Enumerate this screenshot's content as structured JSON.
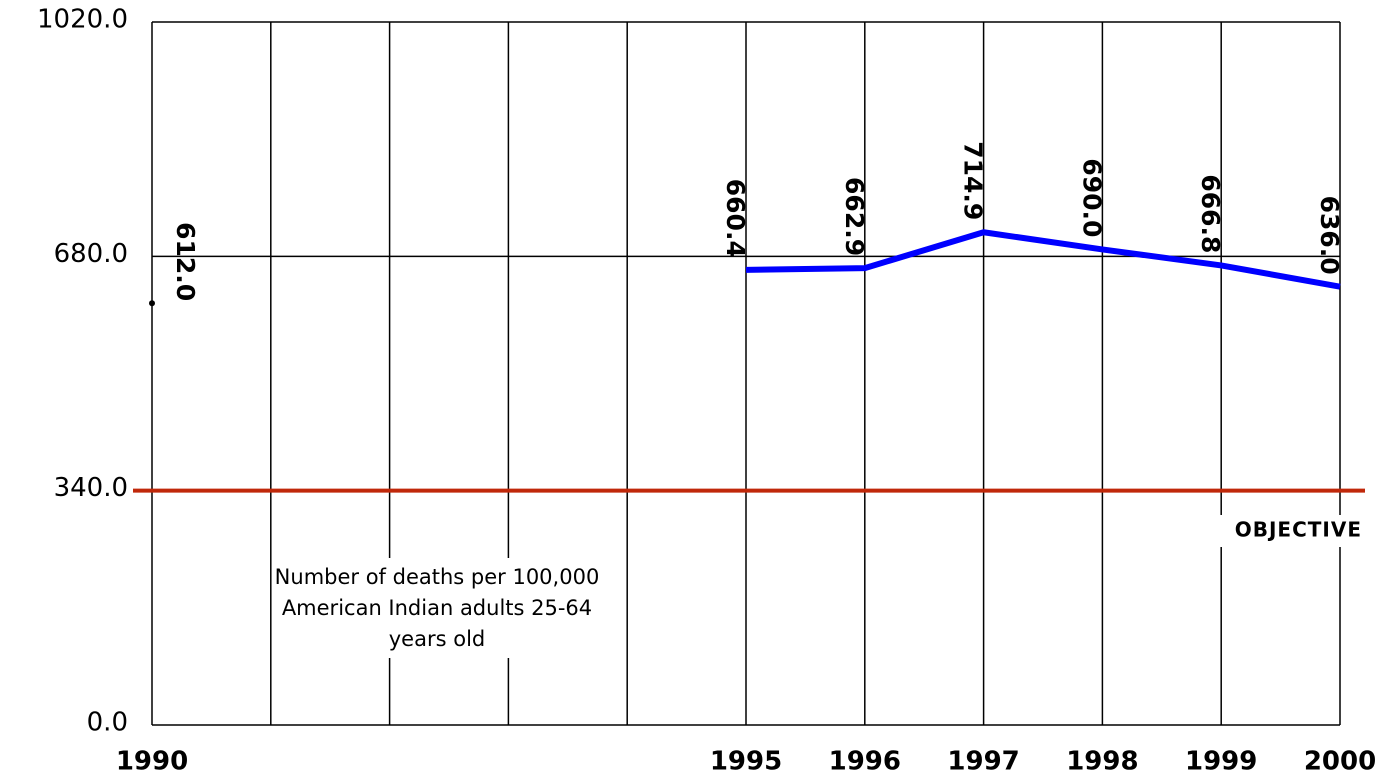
{
  "chart_data": {
    "type": "line",
    "categories": [
      "1990",
      null,
      null,
      null,
      null,
      "1995",
      "1996",
      "1997",
      "1998",
      "1999",
      "2000"
    ],
    "series": [
      {
        "color": "#0000ff",
        "marker_color": "#000000",
        "values": [
          612.0,
          null,
          null,
          null,
          null,
          660.4,
          662.9,
          714.9,
          690.0,
          666.8,
          636.0
        ],
        "value_labels": [
          "612.0",
          null,
          null,
          null,
          null,
          "660.4",
          "662.9",
          "714.9",
          "690.0",
          "666.8",
          "636.0"
        ]
      }
    ],
    "ylim": [
      0,
      1020
    ],
    "yticks": [
      {
        "value": 0,
        "label": "0.0"
      },
      {
        "value": 340,
        "label": "340.0"
      },
      {
        "value": 680,
        "label": "680.0"
      },
      {
        "value": 1020,
        "label": "1020.0"
      }
    ],
    "grid": true,
    "objective": {
      "value": 340,
      "label": "OBJECTIVE",
      "color": "#c0280a"
    },
    "annotation": [
      "Number of deaths per 100,000",
      "American Indian adults 25-64",
      "years old"
    ]
  }
}
